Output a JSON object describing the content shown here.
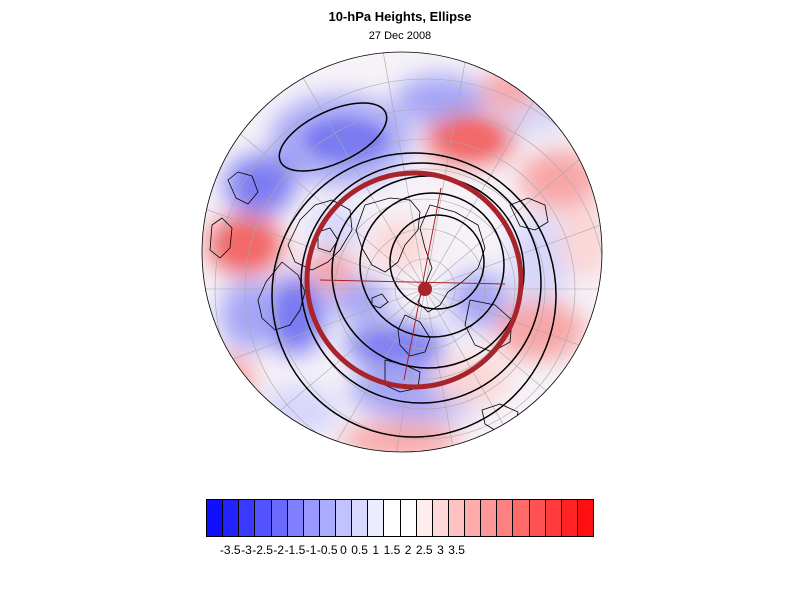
{
  "figure": {
    "title": "10-hPa Heights, Ellipse",
    "subtitle": "27 Dec 2008"
  },
  "colorbar": {
    "labels": [
      "-3.5",
      "-3",
      "-2.5",
      "-2",
      "-1.5",
      "-1",
      "-0.5",
      "0",
      "0.5",
      "1",
      "1.5",
      "2",
      "2.5",
      "3",
      "3.5"
    ],
    "colors": [
      "#1010ff",
      "#2323ff",
      "#3a3aff",
      "#5252ff",
      "#6a6aff",
      "#8080ff",
      "#9898ff",
      "#acacff",
      "#c2c2ff",
      "#d8d8ff",
      "#ececff",
      "#ffffff",
      "#ffffff",
      "#ffecec",
      "#ffd8d8",
      "#ffc2c2",
      "#ffacac",
      "#ff9898",
      "#ff8080",
      "#ff6a6a",
      "#ff5252",
      "#ff3a3a",
      "#ff2323",
      "#ff1010"
    ]
  },
  "map": {
    "projection": "north-polar orthographic",
    "ellipse_color": "#a8232a",
    "contour_color": "#000000",
    "palette": {
      "blue_strong": "#7b7bf2",
      "blue_mid": "#a5a5f6",
      "blue_light": "#d6d6fb",
      "red_strong": "#f26a6a",
      "red_mid": "#f8a5a5",
      "red_light": "#fcd6d6",
      "background": "#f6f2f8"
    }
  }
}
